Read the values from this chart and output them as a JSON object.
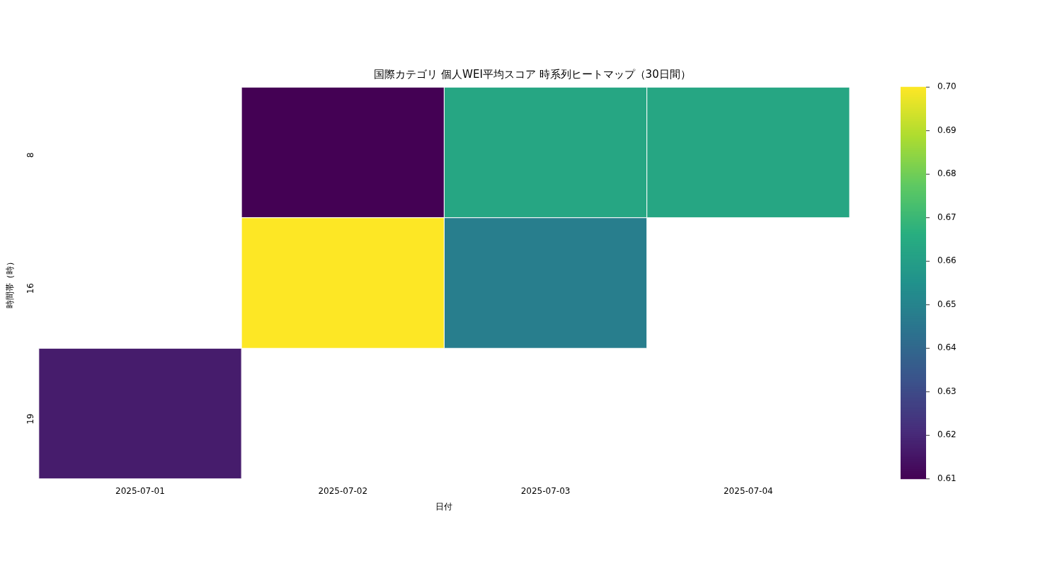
{
  "chart_data": {
    "type": "heatmap",
    "title": "国際カテゴリ 個人WEI平均スコア 時系列ヒートマップ（30日間）",
    "xlabel": "日付",
    "ylabel": "時間帯（時）",
    "categories": [
      "2025-07-01",
      "2025-07-02",
      "2025-07-03",
      "2025-07-04"
    ],
    "y_categories": [
      "8",
      "16",
      "19"
    ],
    "cells": [
      [
        null,
        0.61,
        0.663,
        0.663
      ],
      [
        null,
        0.7,
        0.648,
        null
      ],
      [
        0.617,
        null,
        null,
        null
      ]
    ],
    "clim": [
      0.61,
      0.7
    ],
    "cticks": [
      0.61,
      0.62,
      0.63,
      0.64,
      0.65,
      0.66,
      0.67,
      0.68,
      0.69,
      {
        "value": 0.7,
        "label": "0.70"
      }
    ]
  }
}
